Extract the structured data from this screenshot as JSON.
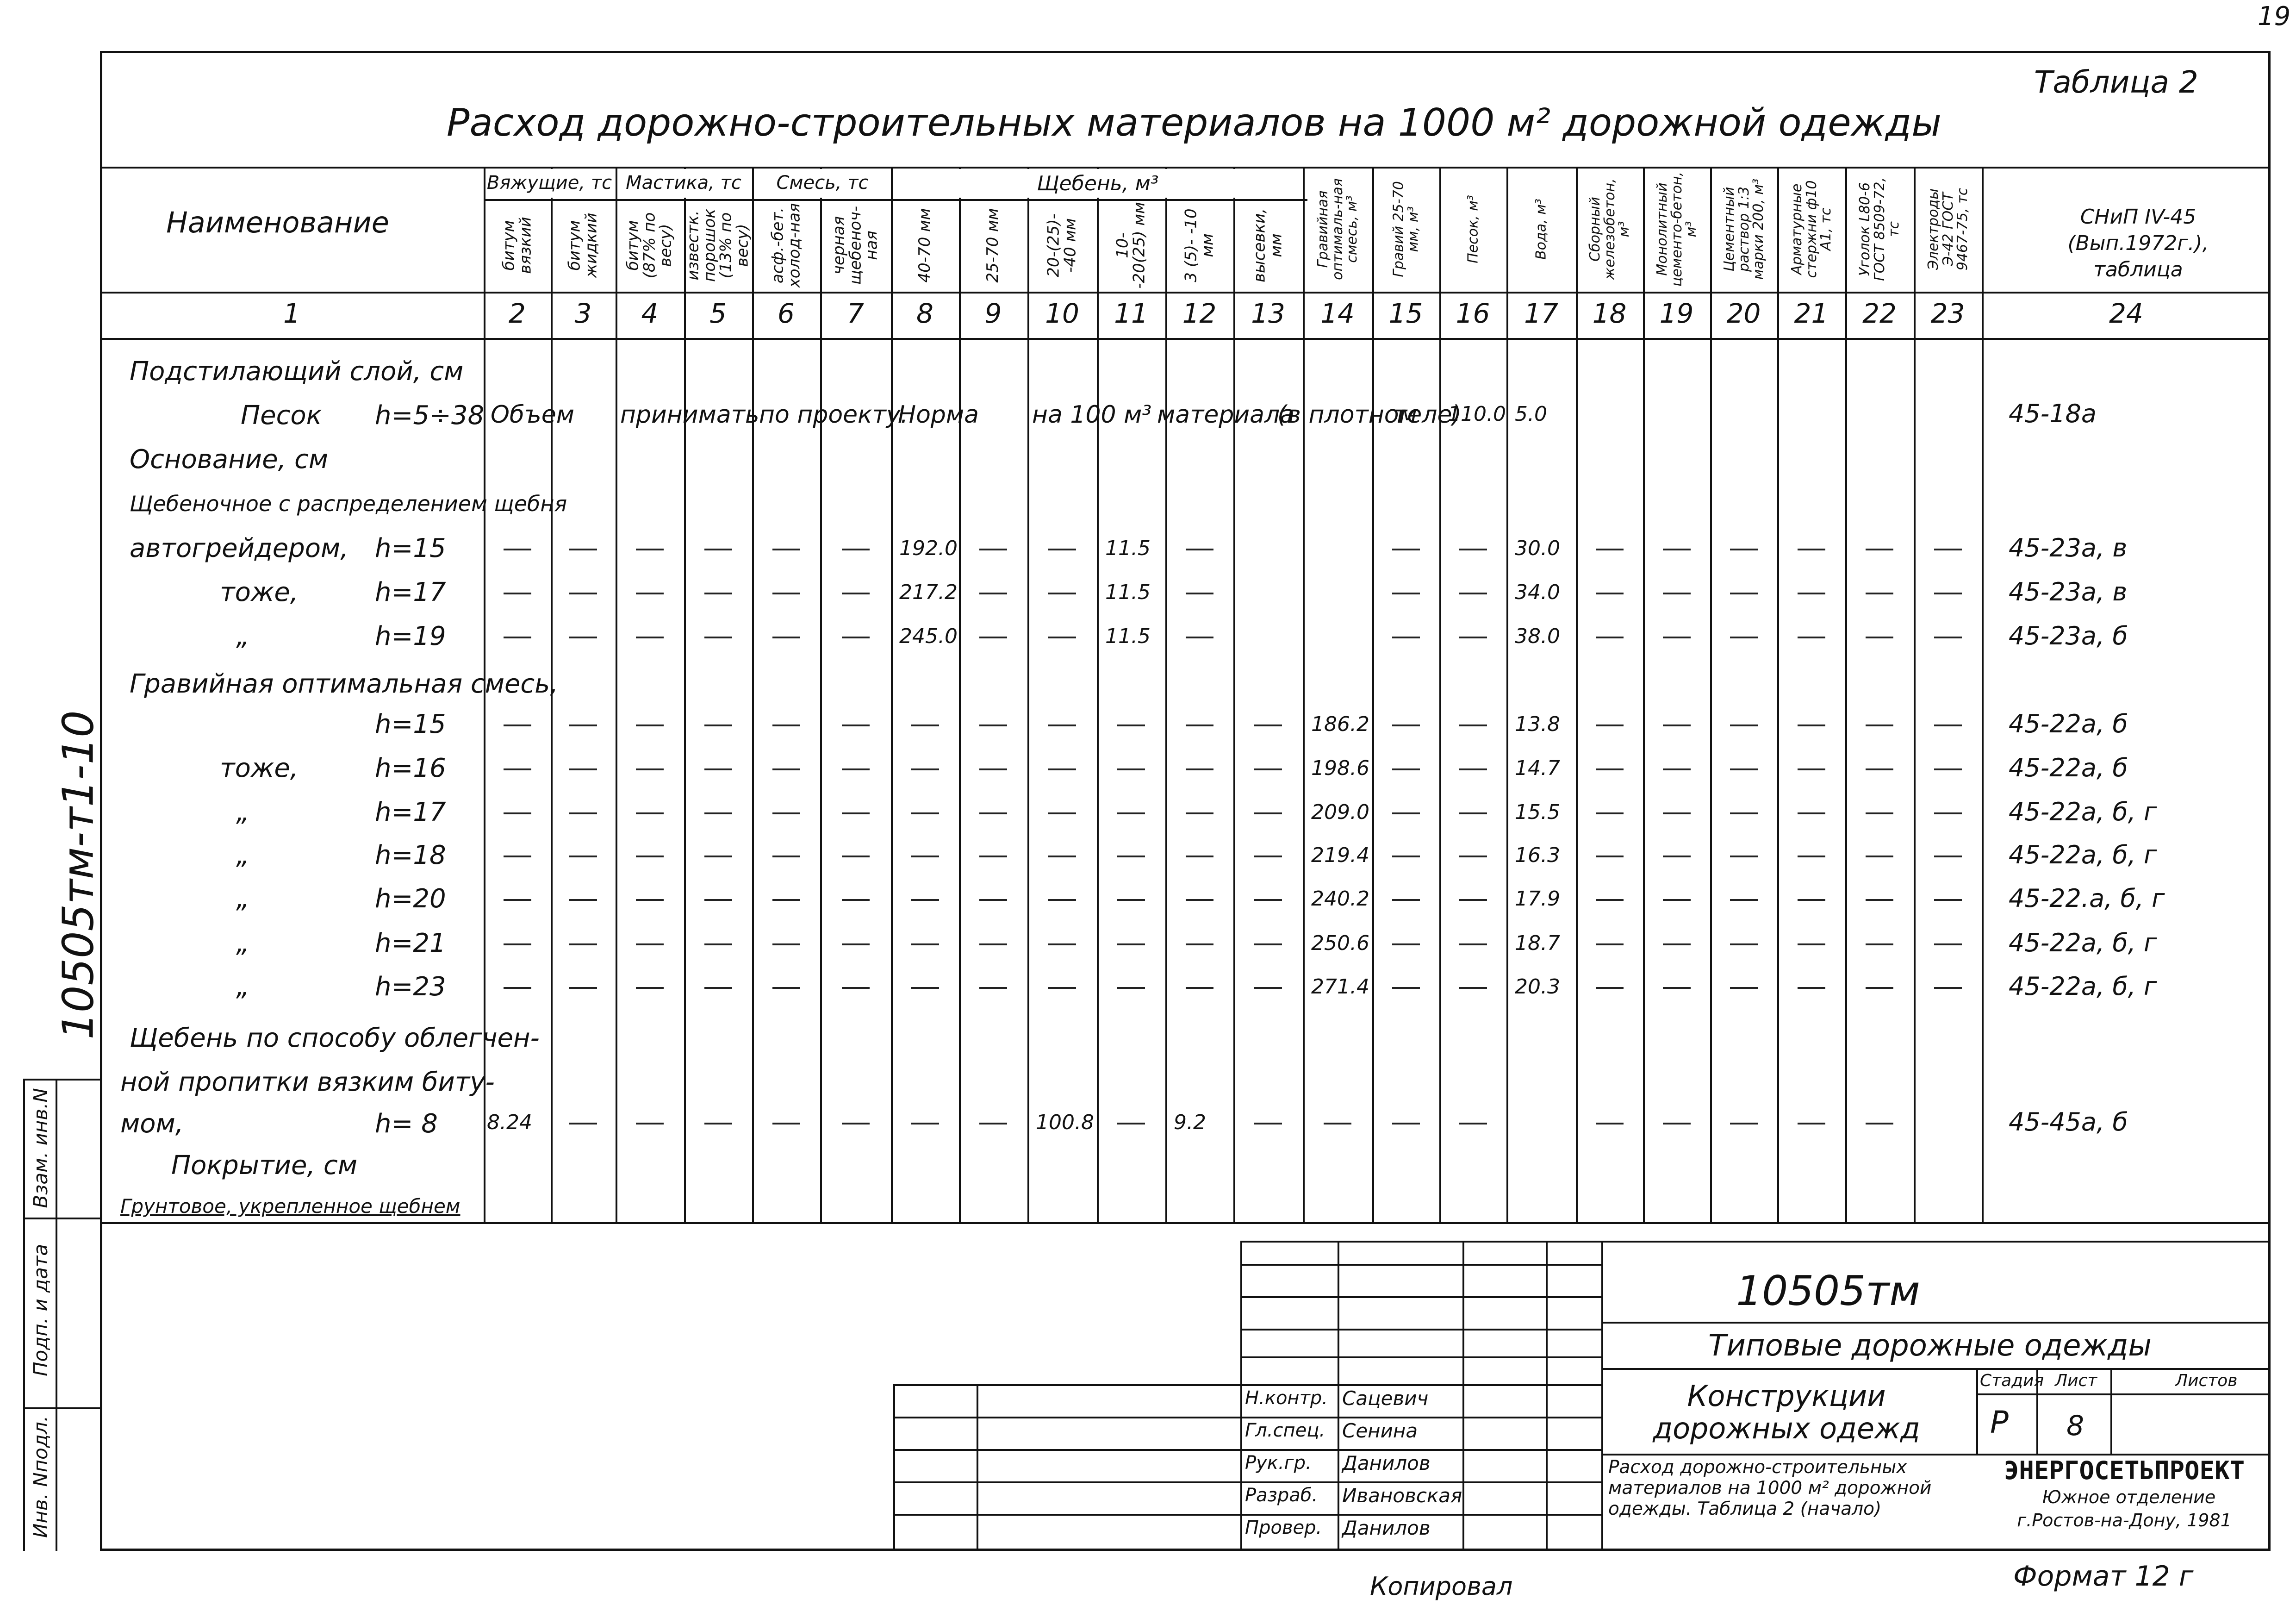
{
  "sheet": {
    "corner_mark": "19",
    "table_label": "Таблица  2",
    "title": "Расход дорожно-строительных материалов на 1000 м² дорожной одежды",
    "side_code": "10505тм-т1-10",
    "side_stamp": [
      "Инв. Nподл.",
      "Подп. и дата",
      "Взам. инв.N"
    ],
    "copied": "Копировал",
    "format": "Формат 12 г"
  },
  "header": {
    "name_col": "Наименование",
    "groups": [
      "Вяжущие, тс",
      "Мастика, тс",
      "Смесь, тс",
      "Щебень, м³"
    ],
    "sub": [
      "битум вязкий",
      "битум жидкий",
      "битум (87% по весу)",
      "известк. порошок (13% по весу)",
      "асф.-бет. холод-ная",
      "черная щебеноч-ная",
      "40-70 мм",
      "25-70 мм",
      "20-(25)- -40 мм",
      "10- -20(25) мм",
      "3 (5)- -10 мм",
      "высевки, мм",
      "Гравийная оптималь-ная смесь, м³",
      "Гравий 25-70 мм, м³",
      "Песок, м³",
      "Вода, м³",
      "Сборный железобетон, м³",
      "Монолитный цементо-бетон, м³",
      "Цементный раствор 1:3 марки 200, м³",
      "Арматурные стержни ф10 А1, тс",
      "Уголок L80-6 ГОСТ 8509-72, тс",
      "Электроды Э-42 ГОСТ 9467-75, тс"
    ],
    "snip": "СНиП IV-45 (Вып.1972г.), таблица",
    "nums": [
      "1",
      "2",
      "3",
      "4",
      "5",
      "6",
      "7",
      "8",
      "9",
      "10",
      "11",
      "12",
      "13",
      "14",
      "15",
      "16",
      "17",
      "18",
      "19",
      "20",
      "21",
      "22",
      "23",
      "24"
    ]
  },
  "rows": {
    "sub_sloy": "Подстилающий слой, см",
    "pesok_name": "Песок",
    "pesok_h": "h=5÷38",
    "pesok_note": [
      "Объем",
      "принимать",
      "по проекту.",
      "Норма",
      "на 100 м³",
      "материала",
      "(в плотном",
      "теле)"
    ],
    "pesok_col16": "110.0",
    "pesok_col17": "5.0",
    "pesok_ref": "45-18а",
    "osnovanie": "Основание, см",
    "shcheb_head": "Щебеночное с распределением щебня",
    "shcheb": [
      {
        "name": "автогрейдером,",
        "h": "h=15",
        "c8": "192.0",
        "c11": "11.5",
        "c17": "30.0",
        "ref": "45-23а, в"
      },
      {
        "name": "тоже,",
        "h": "h=17",
        "c8": "217.2",
        "c11": "11.5",
        "c17": "34.0",
        "ref": "45-23а, в"
      },
      {
        "name": "„",
        "h": "h=19",
        "c8": "245.0",
        "c11": "11.5",
        "c17": "38.0",
        "ref": "45-23а, б"
      }
    ],
    "grav_head": "Гравийная оптимальная смесь,",
    "grav": [
      {
        "name": "",
        "h": "h=15",
        "c14": "186.2",
        "c17": "13.8",
        "ref": "45-22а, б"
      },
      {
        "name": "тоже,",
        "h": "h=16",
        "c14": "198.6",
        "c17": "14.7",
        "ref": "45-22а, б"
      },
      {
        "name": "„",
        "h": "h=17",
        "c14": "209.0",
        "c17": "15.5",
        "ref": "45-22а, б, г"
      },
      {
        "name": "„",
        "h": "h=18",
        "c14": "219.4",
        "c17": "16.3",
        "ref": "45-22а, б, г"
      },
      {
        "name": "„",
        "h": "h=20",
        "c14": "240.2",
        "c17": "17.9",
        "ref": "45-22.а, б, г"
      },
      {
        "name": "„",
        "h": "h=21",
        "c14": "250.6",
        "c17": "18.7",
        "ref": "45-22а, б, г"
      },
      {
        "name": "„",
        "h": "h=23",
        "c14": "271.4",
        "c17": "20.3",
        "ref": "45-22а, б, г"
      }
    ],
    "oblegch": [
      "Щебень по способу облегчен-",
      "ной пропитки вязким биту-",
      "мом,"
    ],
    "oblegch_h": "h= 8",
    "oblegch_c2": "8.24",
    "oblegch_c10": "100.8",
    "oblegch_c12": "9.2",
    "oblegch_ref": "45-45а, б",
    "pokrytie": "Покрытие, см",
    "gruntovoe": "Грунтовое, укрепленное щебнем"
  },
  "stamp": {
    "code": "10505тм",
    "series": "Типовые дорожные одежды",
    "object": [
      "Конструкции",
      "дорожных одежд"
    ],
    "sheet_title": [
      "Расход дорожно-строительных",
      "материалов на 1000 м² дорожной",
      "одежды. Таблица 2 (начало)"
    ],
    "stage_label": "Стадия",
    "sheet_label": "Лист",
    "sheets_label": "Листов",
    "stage": "Р",
    "sheet": "8",
    "org": [
      "ЭНЕРГОСЕТЬПРОЕКТ",
      "Южное отделение",
      "г.Ростов-на-Дону, 1981"
    ],
    "people": [
      {
        "role": "Н.контр.",
        "name": "Сацевич"
      },
      {
        "role": "Гл.спец.",
        "name": "Сенина"
      },
      {
        "role": "Рук.гр.",
        "name": "Данилов"
      },
      {
        "role": "Разраб.",
        "name": "Ивановская"
      },
      {
        "role": "Провер.",
        "name": "Данилов"
      }
    ]
  }
}
